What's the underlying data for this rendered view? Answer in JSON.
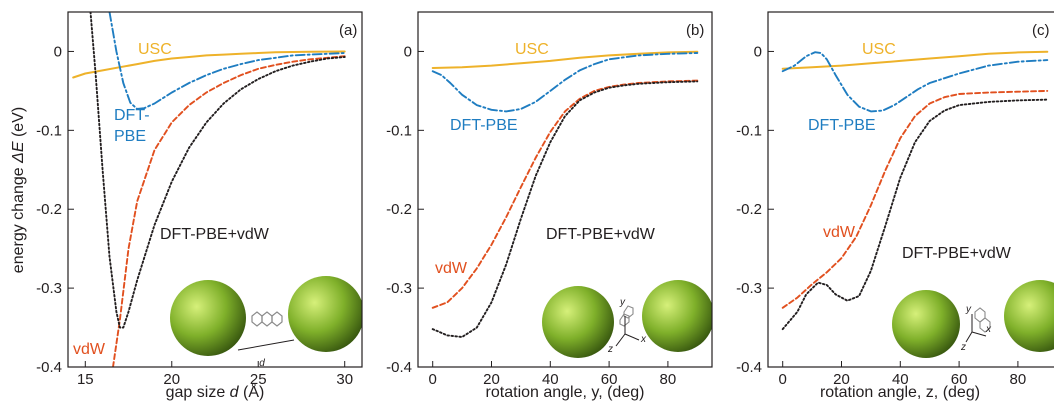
{
  "figure": {
    "ylabel_prefix": "energy change ",
    "ylabel_symbol": "ΔE",
    "ylabel_suffix": " (eV)",
    "y_ticks": [
      "0",
      "-0.1",
      "-0.2",
      "-0.3",
      "-0.4"
    ],
    "ylim": [
      -0.4,
      0.05
    ]
  },
  "colors": {
    "USC": "#eeb22a",
    "DFT-PBE": "#1f7dc1",
    "vdW": "#e1501f",
    "DFT-PBE+vdW": "#231f20",
    "inset_green": "#7fb02a",
    "inset_dark": "#3a5a10"
  },
  "panels": [
    {
      "letter": "(a)",
      "xlabel_prefix": "gap size ",
      "xlabel_symbol": "d",
      "xlabel_suffix": " (Å)",
      "inset_label": "d",
      "labels": {
        "USC": "USC",
        "DFT-PBE_1": "DFT-",
        "DFT-PBE_2": "PBE",
        "vdW": "vdW",
        "DFT-PBE+vdW": "DFT-PBE+vdW"
      }
    },
    {
      "letter": "(b)",
      "xlabel": "rotation angle, y, (deg)",
      "inset_axes": [
        "y",
        "x",
        "z"
      ],
      "labels": {
        "USC": "USC",
        "DFT-PBE": "DFT-PBE",
        "vdW": "vdW",
        "DFT-PBE+vdW": "DFT-PBE+vdW"
      }
    },
    {
      "letter": "(c)",
      "xlabel": "rotation angle, z, (deg)",
      "inset_axes": [
        "y",
        "x",
        "z"
      ],
      "labels": {
        "USC": "USC",
        "DFT-PBE": "DFT-PBE",
        "vdW": "vdW",
        "DFT-PBE+vdW": "DFT-PBE+vdW"
      }
    }
  ],
  "chart_data": [
    {
      "type": "line",
      "title": "(a)",
      "xlabel": "gap size d (Å)",
      "ylabel": "energy change ΔE (eV)",
      "xlim": [
        14,
        31
      ],
      "ylim": [
        -0.4,
        0.05
      ],
      "x_ticks": [
        15,
        20,
        25,
        30
      ],
      "series": [
        {
          "name": "USC",
          "style": "solid",
          "x": [
            14.3,
            15,
            16,
            17,
            18,
            19,
            20,
            21,
            22,
            23,
            24,
            25,
            26,
            27,
            28,
            29,
            30
          ],
          "y": [
            -0.033,
            -0.028,
            -0.024,
            -0.02,
            -0.016,
            -0.012,
            -0.009,
            -0.007,
            -0.005,
            -0.004,
            -0.003,
            -0.002,
            -0.001,
            -0.0007,
            -0.0004,
            -0.0002,
            -0.0001
          ]
        },
        {
          "name": "DFT-PBE",
          "style": "dashdot",
          "x": [
            16.4,
            16.8,
            17.2,
            17.6,
            18.0,
            18.4,
            19,
            20,
            21,
            22,
            23,
            24,
            25,
            26,
            27,
            28,
            29,
            30
          ],
          "y": [
            0.05,
            0.0,
            -0.04,
            -0.065,
            -0.073,
            -0.072,
            -0.066,
            -0.052,
            -0.04,
            -0.03,
            -0.022,
            -0.016,
            -0.011,
            -0.008,
            -0.005,
            -0.004,
            -0.003,
            -0.002
          ]
        },
        {
          "name": "vdW",
          "style": "dashed",
          "x": [
            16.6,
            17.0,
            17.5,
            18,
            19,
            20,
            21,
            22,
            23,
            24,
            25,
            26,
            27,
            28,
            29,
            30
          ],
          "y": [
            -0.4,
            -0.34,
            -0.25,
            -0.19,
            -0.125,
            -0.09,
            -0.068,
            -0.052,
            -0.04,
            -0.03,
            -0.022,
            -0.017,
            -0.013,
            -0.01,
            -0.008,
            -0.006
          ]
        },
        {
          "name": "DFT-PBE+vdW",
          "style": "dotted",
          "x": [
            15.3,
            15.6,
            16.0,
            16.4,
            16.8,
            17.0,
            17.2,
            17.5,
            18,
            19,
            20,
            21,
            22,
            23,
            24,
            25,
            26,
            27,
            28,
            29,
            30
          ],
          "y": [
            0.05,
            -0.03,
            -0.15,
            -0.26,
            -0.33,
            -0.35,
            -0.35,
            -0.33,
            -0.29,
            -0.22,
            -0.165,
            -0.122,
            -0.09,
            -0.066,
            -0.048,
            -0.035,
            -0.025,
            -0.018,
            -0.013,
            -0.009,
            -0.007
          ]
        }
      ]
    },
    {
      "type": "line",
      "title": "(b)",
      "xlabel": "rotation angle, y, (deg)",
      "ylabel": "energy change ΔE (eV)",
      "xlim": [
        -5,
        95
      ],
      "ylim": [
        -0.4,
        0.05
      ],
      "x_ticks": [
        0,
        20,
        40,
        60,
        80
      ],
      "series": [
        {
          "name": "USC",
          "style": "solid",
          "x": [
            0,
            10,
            20,
            30,
            40,
            50,
            60,
            70,
            80,
            90
          ],
          "y": [
            -0.021,
            -0.02,
            -0.018,
            -0.015,
            -0.012,
            -0.008,
            -0.005,
            -0.003,
            -0.0012,
            -0.0005
          ]
        },
        {
          "name": "DFT-PBE",
          "style": "dashdot",
          "x": [
            0,
            3,
            6,
            10,
            15,
            20,
            25,
            30,
            35,
            40,
            45,
            50,
            55,
            60,
            70,
            80,
            90
          ],
          "y": [
            -0.025,
            -0.03,
            -0.04,
            -0.055,
            -0.068,
            -0.074,
            -0.076,
            -0.073,
            -0.064,
            -0.05,
            -0.036,
            -0.024,
            -0.016,
            -0.01,
            -0.005,
            -0.003,
            -0.002
          ]
        },
        {
          "name": "vdW",
          "style": "dashed",
          "x": [
            0,
            5,
            10,
            15,
            20,
            25,
            30,
            35,
            40,
            45,
            50,
            55,
            60,
            65,
            70,
            80,
            90
          ],
          "y": [
            -0.325,
            -0.318,
            -0.3,
            -0.275,
            -0.245,
            -0.21,
            -0.172,
            -0.135,
            -0.102,
            -0.076,
            -0.06,
            -0.05,
            -0.045,
            -0.042,
            -0.04,
            -0.038,
            -0.037
          ]
        },
        {
          "name": "DFT-PBE+vdW",
          "style": "dotted",
          "x": [
            0,
            5,
            10,
            15,
            20,
            25,
            30,
            35,
            40,
            45,
            50,
            55,
            60,
            65,
            70,
            80,
            90
          ],
          "y": [
            -0.352,
            -0.36,
            -0.362,
            -0.35,
            -0.318,
            -0.27,
            -0.212,
            -0.158,
            -0.115,
            -0.082,
            -0.062,
            -0.052,
            -0.046,
            -0.043,
            -0.041,
            -0.039,
            -0.038
          ]
        }
      ]
    },
    {
      "type": "line",
      "title": "(c)",
      "xlabel": "rotation angle, z, (deg)",
      "ylabel": "energy change ΔE (eV)",
      "xlim": [
        -5,
        95
      ],
      "ylim": [
        -0.4,
        0.05
      ],
      "x_ticks": [
        0,
        20,
        40,
        60,
        80
      ],
      "series": [
        {
          "name": "USC",
          "style": "solid",
          "x": [
            0,
            10,
            20,
            30,
            40,
            50,
            60,
            70,
            80,
            90
          ],
          "y": [
            -0.022,
            -0.02,
            -0.018,
            -0.015,
            -0.012,
            -0.009,
            -0.006,
            -0.003,
            -0.0012,
            -0.0004
          ]
        },
        {
          "name": "DFT-PBE",
          "style": "dashdot",
          "x": [
            0,
            4,
            8,
            11,
            13,
            15,
            18,
            22,
            26,
            30,
            34,
            38,
            42,
            46,
            50,
            60,
            70,
            80,
            90
          ],
          "y": [
            -0.025,
            -0.018,
            -0.006,
            -0.001,
            -0.002,
            -0.01,
            -0.03,
            -0.055,
            -0.07,
            -0.076,
            -0.075,
            -0.068,
            -0.058,
            -0.048,
            -0.04,
            -0.028,
            -0.018,
            -0.013,
            -0.011
          ]
        },
        {
          "name": "vdW",
          "style": "dashed",
          "x": [
            0,
            5,
            10,
            15,
            20,
            25,
            30,
            35,
            40,
            45,
            50,
            55,
            60,
            70,
            80,
            90
          ],
          "y": [
            -0.325,
            -0.312,
            -0.295,
            -0.28,
            -0.262,
            -0.235,
            -0.195,
            -0.15,
            -0.11,
            -0.082,
            -0.066,
            -0.058,
            -0.054,
            -0.052,
            -0.051,
            -0.05
          ]
        },
        {
          "name": "DFT-PBE+vdW",
          "style": "dotted",
          "x": [
            0,
            5,
            8,
            12,
            15,
            18,
            22,
            26,
            30,
            35,
            40,
            45,
            50,
            55,
            60,
            70,
            80,
            90
          ],
          "y": [
            -0.352,
            -0.33,
            -0.308,
            -0.293,
            -0.296,
            -0.308,
            -0.316,
            -0.31,
            -0.278,
            -0.22,
            -0.16,
            -0.115,
            -0.088,
            -0.075,
            -0.068,
            -0.064,
            -0.062,
            -0.061
          ]
        }
      ]
    }
  ]
}
